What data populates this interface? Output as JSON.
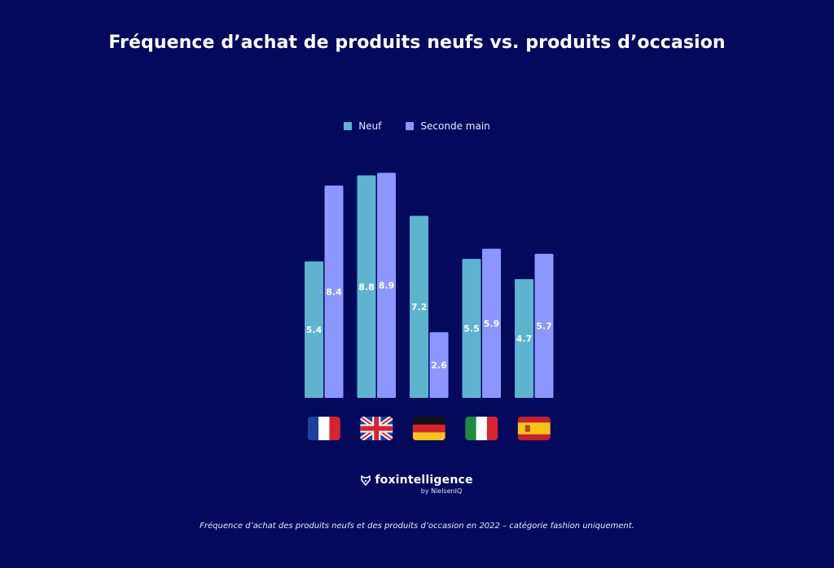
{
  "chart_data": {
    "type": "bar",
    "title": "Fréquence d’achat de produits neufs vs. produits d’occasion",
    "categories": [
      "France",
      "United Kingdom",
      "Germany",
      "Italy",
      "Spain"
    ],
    "category_icons": [
      "flag-france-icon",
      "flag-uk-icon",
      "flag-germany-icon",
      "flag-italy-icon",
      "flag-spain-icon"
    ],
    "series": [
      {
        "name": "Neuf",
        "color": "#5eb3cf",
        "values": [
          5.4,
          8.8,
          7.2,
          5.5,
          4.7
        ]
      },
      {
        "name": "Seconde main",
        "color": "#8c96ff",
        "values": [
          8.4,
          8.9,
          2.6,
          5.9,
          5.7
        ]
      }
    ],
    "legend_position": "top-center",
    "ylim": [
      0,
      9.3
    ],
    "grid": false,
    "xlabel": "",
    "ylabel": ""
  },
  "logo": {
    "name": "foxintelligence",
    "sub": "by NielsenIQ"
  },
  "footnote": "Fréquence d’achat des produits neufs et des produits d’occasion en 2022 – catégorie fashion uniquement."
}
